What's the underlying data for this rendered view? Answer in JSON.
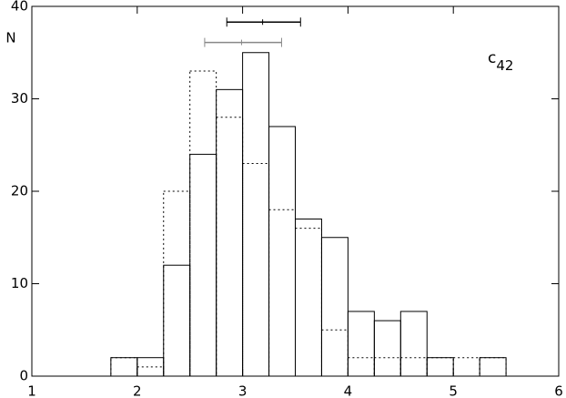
{
  "chart_data": {
    "type": "histogram",
    "ylabel": "N",
    "annotation": {
      "text": "c",
      "subscript": "42"
    },
    "bins": [
      1.75,
      2.0,
      2.25,
      2.5,
      2.75,
      3.0,
      3.25,
      3.5,
      3.75,
      4.0,
      4.25,
      4.5,
      4.75,
      5.0,
      5.25,
      5.5
    ],
    "series": [
      {
        "style": "solid",
        "color": "#000000",
        "values": [
          2,
          2,
          12,
          24,
          31,
          35,
          27,
          17,
          15,
          7,
          6,
          7,
          2,
          0,
          2
        ]
      },
      {
        "style": "dotted",
        "color": "#000000",
        "values": [
          2,
          1,
          20,
          33,
          28,
          23,
          18,
          16,
          5,
          2,
          2,
          2,
          2,
          2,
          2
        ]
      }
    ],
    "error_bars": [
      {
        "color": "#000000",
        "x": 3.19,
        "xmin": 2.85,
        "xmax": 3.55,
        "y": 38.3
      },
      {
        "color": "#888888",
        "x": 2.99,
        "xmin": 2.64,
        "xmax": 3.37,
        "y": 36.1
      }
    ],
    "xlim": [
      1,
      6
    ],
    "ylim": [
      0,
      40
    ],
    "xticks": [
      1,
      2,
      3,
      4,
      5,
      6
    ],
    "yticks": [
      0,
      10,
      20,
      30,
      40
    ]
  }
}
